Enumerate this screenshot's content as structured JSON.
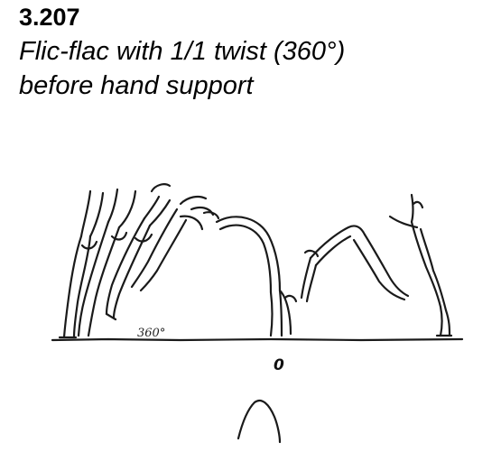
{
  "element": {
    "number": "3.207",
    "title_line1": "Flic-flac with 1/1 twist (360°)",
    "title_line2": "before hand support"
  },
  "figure": {
    "twist_label": "360°",
    "marker_label": "0"
  }
}
